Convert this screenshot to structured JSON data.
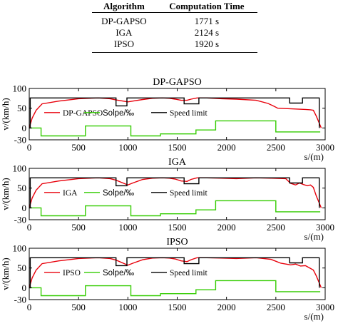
{
  "table": {
    "headers": [
      "Algorithm",
      "Computation Time"
    ],
    "rows": [
      [
        "DP-GAPSO",
        "1771 s"
      ],
      [
        "IGA",
        "2124 s"
      ],
      [
        "IPSO",
        "1920 s"
      ]
    ]
  },
  "colors": {
    "speed_curve": "#e8000b",
    "slope": "#33cc00",
    "speed_limit": "#000000"
  },
  "chart_data": [
    {
      "type": "line",
      "title": "DP-GAPSO",
      "xlabel": "s/(m)",
      "ylabel": "v/(km/h)",
      "xlim": [
        0,
        3000
      ],
      "ylim": [
        -30,
        100
      ],
      "xticks": [
        0,
        500,
        1000,
        1500,
        2000,
        2500,
        3000
      ],
      "yticks": [
        -30,
        0,
        50,
        100
      ],
      "legend": "inside-middle",
      "series": [
        {
          "name": "DP-GAPSO",
          "x": [
            0,
            30,
            70,
            130,
            300,
            500,
            700,
            820,
            880,
            1000,
            1050,
            1150,
            1250,
            1350,
            1420,
            1480,
            1540,
            1600,
            1640,
            1700,
            1800,
            1950,
            2100,
            2300,
            2420,
            2480,
            2520,
            2700,
            2800,
            2850,
            2880,
            2910,
            2960
          ],
          "y": [
            0,
            25,
            45,
            61,
            68,
            74,
            76,
            74,
            71,
            66,
            68,
            72,
            75,
            76,
            75,
            73,
            70,
            70,
            73,
            76,
            76,
            74,
            73,
            70,
            62,
            55,
            50,
            48,
            47,
            46,
            45,
            30,
            0
          ]
        },
        {
          "name": "Solpe/‰",
          "x": [
            0,
            120,
            120,
            570,
            570,
            1030,
            1030,
            1330,
            1330,
            1690,
            1690,
            1890,
            1890,
            2500,
            2500,
            2950
          ],
          "y": [
            0,
            0,
            -20,
            -20,
            5,
            5,
            -20,
            -20,
            -15,
            -15,
            -5,
            -5,
            18,
            18,
            -10,
            -10
          ]
        },
        {
          "name": "Speed limit",
          "x": [
            0,
            10,
            10,
            880,
            880,
            990,
            990,
            1570,
            1570,
            1720,
            1720,
            2640,
            2640,
            2770,
            2770,
            2940,
            2940
          ],
          "y": [
            0,
            0,
            76,
            76,
            56,
            56,
            76,
            76,
            61,
            61,
            76,
            76,
            63,
            63,
            76,
            76,
            0
          ]
        }
      ]
    },
    {
      "type": "line",
      "title": "IGA",
      "xlabel": "s/(m)",
      "ylabel": "v/(km/h)",
      "xlim": [
        0,
        3000
      ],
      "ylim": [
        -30,
        100
      ],
      "xticks": [
        0,
        500,
        1000,
        1500,
        2000,
        2500,
        3000
      ],
      "yticks": [
        -30,
        0,
        50,
        100
      ],
      "legend": "inside-middle",
      "series": [
        {
          "name": "IGA",
          "x": [
            0,
            30,
            70,
            130,
            300,
            500,
            700,
            820,
            880,
            1000,
            1050,
            1150,
            1250,
            1350,
            1420,
            1480,
            1540,
            1600,
            1640,
            1700,
            1800,
            1950,
            2100,
            2300,
            2450,
            2600,
            2650,
            2700,
            2740,
            2780,
            2820,
            2850,
            2880,
            2910,
            2960
          ],
          "y": [
            0,
            25,
            45,
            61,
            68,
            74,
            76,
            74,
            70,
            58,
            63,
            72,
            75,
            76,
            75,
            73,
            68,
            67,
            72,
            76,
            76,
            75,
            74,
            76,
            75,
            74,
            62,
            58,
            63,
            59,
            56,
            58,
            52,
            30,
            0
          ]
        },
        {
          "name": "Solpe/‰",
          "x": [
            0,
            120,
            120,
            570,
            570,
            1030,
            1030,
            1330,
            1330,
            1690,
            1690,
            1890,
            1890,
            2500,
            2500,
            2950
          ],
          "y": [
            0,
            0,
            -20,
            -20,
            5,
            5,
            -20,
            -20,
            -15,
            -15,
            -5,
            -5,
            18,
            18,
            -10,
            -10
          ]
        },
        {
          "name": "Speed limit",
          "x": [
            0,
            10,
            10,
            880,
            880,
            990,
            990,
            1570,
            1570,
            1720,
            1720,
            2640,
            2640,
            2770,
            2770,
            2940,
            2940
          ],
          "y": [
            0,
            0,
            76,
            76,
            56,
            56,
            76,
            76,
            61,
            61,
            76,
            76,
            63,
            63,
            76,
            76,
            0
          ]
        }
      ]
    },
    {
      "type": "line",
      "title": "IPSO",
      "xlabel": "s/(m)",
      "ylabel": "v/(km/h)",
      "xlim": [
        0,
        3000
      ],
      "ylim": [
        -30,
        100
      ],
      "xticks": [
        0,
        500,
        1000,
        1500,
        2000,
        2500,
        3000
      ],
      "yticks": [
        -30,
        0,
        50,
        100
      ],
      "legend": "inside-middle",
      "series": [
        {
          "name": "IPSO",
          "x": [
            0,
            30,
            70,
            130,
            300,
            500,
            700,
            820,
            880,
            1000,
            1050,
            1150,
            1250,
            1350,
            1420,
            1480,
            1540,
            1600,
            1640,
            1700,
            1800,
            1950,
            2100,
            2300,
            2450,
            2550,
            2650,
            2700,
            2750,
            2800,
            2850,
            2880,
            2910,
            2960
          ],
          "y": [
            0,
            25,
            45,
            61,
            68,
            74,
            76,
            74,
            70,
            57,
            62,
            71,
            75,
            76,
            75,
            73,
            68,
            66,
            71,
            76,
            76,
            75,
            74,
            76,
            72,
            62,
            58,
            60,
            55,
            56,
            49,
            45,
            30,
            0
          ]
        },
        {
          "name": "Solpe/‰",
          "x": [
            0,
            120,
            120,
            570,
            570,
            1030,
            1030,
            1330,
            1330,
            1690,
            1690,
            1890,
            1890,
            2500,
            2500,
            2950
          ],
          "y": [
            0,
            0,
            -20,
            -20,
            5,
            5,
            -20,
            -20,
            -15,
            -15,
            -5,
            -5,
            18,
            18,
            -10,
            -10
          ]
        },
        {
          "name": "Speed limit",
          "x": [
            0,
            10,
            10,
            880,
            880,
            990,
            990,
            1570,
            1570,
            1720,
            1720,
            2640,
            2640,
            2770,
            2770,
            2940,
            2940
          ],
          "y": [
            0,
            0,
            76,
            76,
            56,
            56,
            76,
            76,
            61,
            61,
            76,
            76,
            63,
            63,
            76,
            76,
            0
          ]
        }
      ]
    }
  ]
}
